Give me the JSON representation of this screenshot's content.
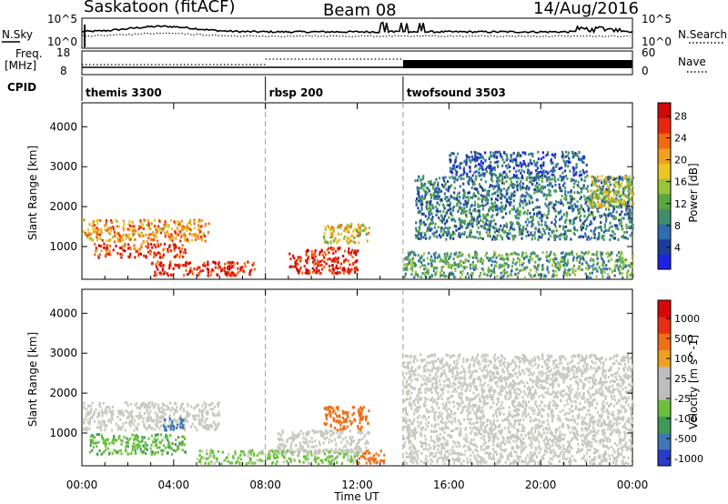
{
  "header": {
    "left_title": "Saskatoon (fitACF)",
    "center_title": "Beam 08",
    "right_title": "14/Aug/2016"
  },
  "aux": {
    "nsky_label": "N.Sky",
    "nsky_ticks": [
      "10^5",
      "10^0"
    ],
    "nsearch_label": "N.Search",
    "nsearch_ticks": [
      "10^5",
      "10^0"
    ],
    "freq_label": "Freq.",
    "freq_unit": "[MHz]",
    "freq_ticks": [
      "18",
      "8"
    ],
    "nave_label": "Nave",
    "nave_ticks": [
      "60",
      "0"
    ],
    "cpid_label": "CPID",
    "cpid_segments": [
      {
        "name": "themis 3300",
        "start_hour": 0
      },
      {
        "name": "rbsp 200",
        "start_hour": 8
      },
      {
        "name": "twofsound 3503",
        "start_hour": 14
      }
    ]
  },
  "power_colorbar": {
    "label": "Power [dB]",
    "ticks": [
      "4",
      "8",
      "12",
      "16",
      "20",
      "24",
      "28"
    ],
    "colors": [
      "#1e22e6",
      "#1e3c9c",
      "#2f6cb0",
      "#3f8e6a",
      "#5aa640",
      "#9bc43a",
      "#e8c820",
      "#f0a020",
      "#f06a10",
      "#e8280e",
      "#d40808"
    ]
  },
  "velocity_colorbar": {
    "label": "Velocity [m s^-1]",
    "ticks": [
      "1000",
      "500",
      "100",
      "25",
      "-25",
      "-100",
      "-500",
      "-1000"
    ],
    "colors": [
      "#2a3cc8",
      "#3f78b4",
      "#3f9a58",
      "#6ac03a",
      "#bdbdbd",
      "#bdbdbd",
      "#f0a020",
      "#f07018",
      "#e83010",
      "#d80808"
    ]
  },
  "x_axis": {
    "title": "Time UT",
    "ticks": [
      "00:00",
      "04:00",
      "08:00",
      "12:00",
      "16:00",
      "20:00",
      "00:00"
    ],
    "range_hours": [
      0,
      24
    ]
  },
  "y_axis": {
    "title": "Slant Range [km]",
    "ticks": [
      "1000",
      "2000",
      "3000",
      "4000"
    ],
    "range_km": [
      180,
      4600
    ]
  },
  "chart_data": [
    {
      "type": "heatmap",
      "name": "Power",
      "x_unit": "hours UT",
      "y_unit": "km",
      "blobs": [
        {
          "t0": 0.0,
          "t1": 5.5,
          "r0": 1150,
          "r1": 1700,
          "level": 0.72
        },
        {
          "t0": 0.5,
          "t1": 4.5,
          "r0": 750,
          "r1": 1100,
          "level": 0.9
        },
        {
          "t0": 3.0,
          "t1": 7.5,
          "r0": 300,
          "r1": 650,
          "level": 0.95
        },
        {
          "t0": 9.0,
          "t1": 12.0,
          "r0": 350,
          "r1": 1000,
          "level": 0.95
        },
        {
          "t0": 10.5,
          "t1": 12.5,
          "r0": 1100,
          "r1": 1600,
          "level": 0.6
        },
        {
          "t0": 14.0,
          "t1": 24.0,
          "r0": 250,
          "r1": 900,
          "level": 0.35
        },
        {
          "t0": 14.5,
          "t1": 24.0,
          "r0": 1200,
          "r1": 2800,
          "level": 0.25
        },
        {
          "t0": 22.0,
          "t1": 24.0,
          "r0": 2000,
          "r1": 2800,
          "level": 0.55
        },
        {
          "t0": 16.0,
          "t1": 22.0,
          "r0": 2800,
          "r1": 3400,
          "level": 0.15
        }
      ]
    },
    {
      "type": "heatmap",
      "name": "Velocity",
      "x_unit": "hours UT",
      "y_unit": "km",
      "blobs": [
        {
          "t0": 0.0,
          "t1": 6.0,
          "r0": 1100,
          "r1": 1800,
          "velocity": 0
        },
        {
          "t0": 0.3,
          "t1": 4.5,
          "r0": 500,
          "r1": 1000,
          "velocity": 100
        },
        {
          "t0": 3.5,
          "t1": 4.5,
          "r0": 1100,
          "r1": 1400,
          "velocity": 500
        },
        {
          "t0": 5.0,
          "t1": 12.0,
          "r0": 250,
          "r1": 600,
          "velocity": 60
        },
        {
          "t0": 8.5,
          "t1": 12.5,
          "r0": 500,
          "r1": 1100,
          "velocity": 0
        },
        {
          "t0": 10.5,
          "t1": 12.5,
          "r0": 1100,
          "r1": 1700,
          "velocity": -300
        },
        {
          "t0": 12.0,
          "t1": 13.2,
          "r0": 250,
          "r1": 600,
          "velocity": -300
        },
        {
          "t0": 14.0,
          "t1": 24.0,
          "r0": 250,
          "r1": 3000,
          "velocity": 0
        }
      ]
    }
  ]
}
